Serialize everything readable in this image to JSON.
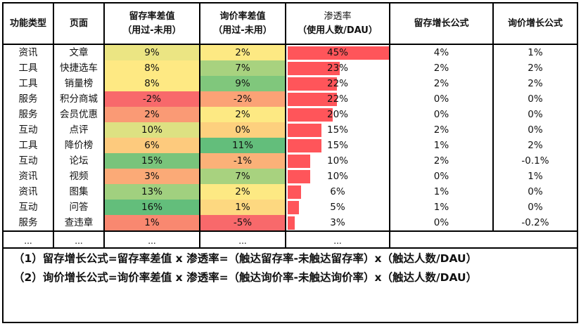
{
  "headers": [
    "功能类型",
    "页面",
    "留存率差值",
    "（用过-未用）",
    "询价率差值",
    "（用过-未用）",
    "渗透率",
    "（使用人数/DAU）",
    "留存增长公式",
    "询价增长公式"
  ],
  "bar_color": "#ff555a",
  "bar_max": 45,
  "rows": [
    {
      "type": "资讯",
      "page": "文章",
      "ret": "9%",
      "ret_color": "#ebe583",
      "inq": "2%",
      "inq_color": "#fde983",
      "pen": "45%",
      "pen_value": 45,
      "ret_g": "4%",
      "inq_g": "1%"
    },
    {
      "type": "工具",
      "page": "快捷选车",
      "ret": "8%",
      "ret_color": "#fee983",
      "inq": "7%",
      "inq_color": "#a8d27f",
      "pen": "23%",
      "pen_value": 23,
      "ret_g": "2%",
      "inq_g": "2%"
    },
    {
      "type": "工具",
      "page": "销量榜",
      "ret": "8%",
      "ret_color": "#fee983",
      "inq": "9%",
      "inq_color": "#80c77c",
      "pen": "22%",
      "pen_value": 22,
      "ret_g": "2%",
      "inq_g": "2%"
    },
    {
      "type": "服务",
      "page": "积分商城",
      "ret": "-2%",
      "ret_color": "#f8696b",
      "inq": "-2%",
      "inq_color": "#fba276",
      "pen": "22%",
      "pen_value": 22,
      "ret_g": "0%",
      "inq_g": "0%"
    },
    {
      "type": "服务",
      "page": "会员优惠",
      "ret": "2%",
      "ret_color": "#fa9a75",
      "inq": "2%",
      "inq_color": "#fde983",
      "pen": "20%",
      "pen_value": 20,
      "ret_g": "0%",
      "inq_g": "0%"
    },
    {
      "type": "互动",
      "page": "点评",
      "ret": "10%",
      "ret_color": "#dde182",
      "inq": "0%",
      "inq_color": "#fdd07e",
      "pen": "15%",
      "pen_value": 15,
      "ret_g": "2%",
      "inq_g": "0%"
    },
    {
      "type": "工具",
      "page": "降价榜",
      "ret": "6%",
      "ret_color": "#fdca7d",
      "inq": "11%",
      "inq_color": "#63be7b",
      "pen": "15%",
      "pen_value": 15,
      "ret_g": "1%",
      "inq_g": "2%"
    },
    {
      "type": "互动",
      "page": "论坛",
      "ret": "15%",
      "ret_color": "#79c47b",
      "inq": "-1%",
      "inq_color": "#fbb178",
      "pen": "10%",
      "pen_value": 10,
      "ret_g": "2%",
      "inq_g": "-0.1%"
    },
    {
      "type": "资讯",
      "page": "视频",
      "ret": "3%",
      "ret_color": "#fbaa77",
      "inq": "7%",
      "inq_color": "#a8d27f",
      "pen": "10%",
      "pen_value": 10,
      "ret_g": "0%",
      "inq_g": "1%"
    },
    {
      "type": "资讯",
      "page": "图集",
      "ret": "13%",
      "ret_color": "#a1d07f",
      "inq": "2%",
      "inq_color": "#fde983",
      "pen": "6%",
      "pen_value": 6,
      "ret_g": "1%",
      "inq_g": "0%"
    },
    {
      "type": "互动",
      "page": "问答",
      "ret": "16%",
      "ret_color": "#63be7b",
      "inq": "1%",
      "inq_color": "#fdd880",
      "pen": "5%",
      "pen_value": 5,
      "ret_g": "1%",
      "inq_g": "0%"
    },
    {
      "type": "服务",
      "page": "查违章",
      "ret": "1%",
      "ret_color": "#f98870",
      "inq": "-5%",
      "inq_color": "#f8696b",
      "pen": "3%",
      "pen_value": 3,
      "ret_g": "0%",
      "inq_g": "-0.2%"
    }
  ],
  "ellipsis": "...",
  "footer": [
    "（1）留存增长公式=留存率差值 x 渗透率=（触达留存率-未触达留存率）x（触达人数/DAU）",
    "（2）询价增长公式=询价率差值 x 渗透率=（触达询价率-未触达询价率）x（触达人数/DAU）"
  ]
}
